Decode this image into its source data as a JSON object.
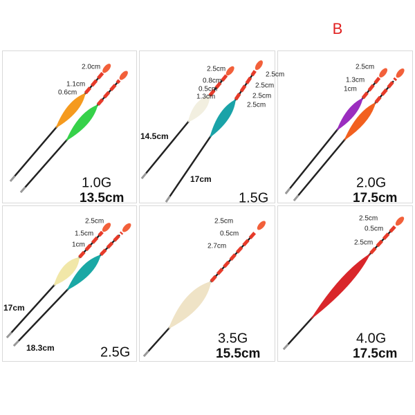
{
  "badge": "B",
  "panels": [
    {
      "weight": "1.0G",
      "lengths": [
        "13.5cm"
      ],
      "dimensions": [
        "2.0cm",
        "1.1cm",
        "0.6cm"
      ]
    },
    {
      "weight": "1.5G",
      "lengths": [
        "14.5cm",
        "17cm"
      ],
      "dimensions": [
        "2.5cm",
        "0.8cm",
        "0.5cm",
        "1.3cm",
        "2.5cm",
        "2.5cm",
        "2.5cm",
        "2.5cm"
      ]
    },
    {
      "weight": "2.0G",
      "lengths": [
        "17.5cm"
      ],
      "dimensions": [
        "2.5cm",
        "1.3cm",
        "1cm"
      ]
    },
    {
      "weight": "2.5G",
      "lengths": [
        "17cm",
        "18.3cm"
      ],
      "dimensions": [
        "2.5cm",
        "1.5cm",
        "1cm"
      ]
    },
    {
      "weight": "3.5G",
      "lengths": [
        "15.5cm"
      ],
      "dimensions": [
        "2.5cm",
        "0.5cm",
        "2.7cm"
      ]
    },
    {
      "weight": "4.0G",
      "lengths": [
        "17.5cm"
      ],
      "dimensions": [
        "2.5cm",
        "0.5cm",
        "2.5cm"
      ]
    }
  ]
}
